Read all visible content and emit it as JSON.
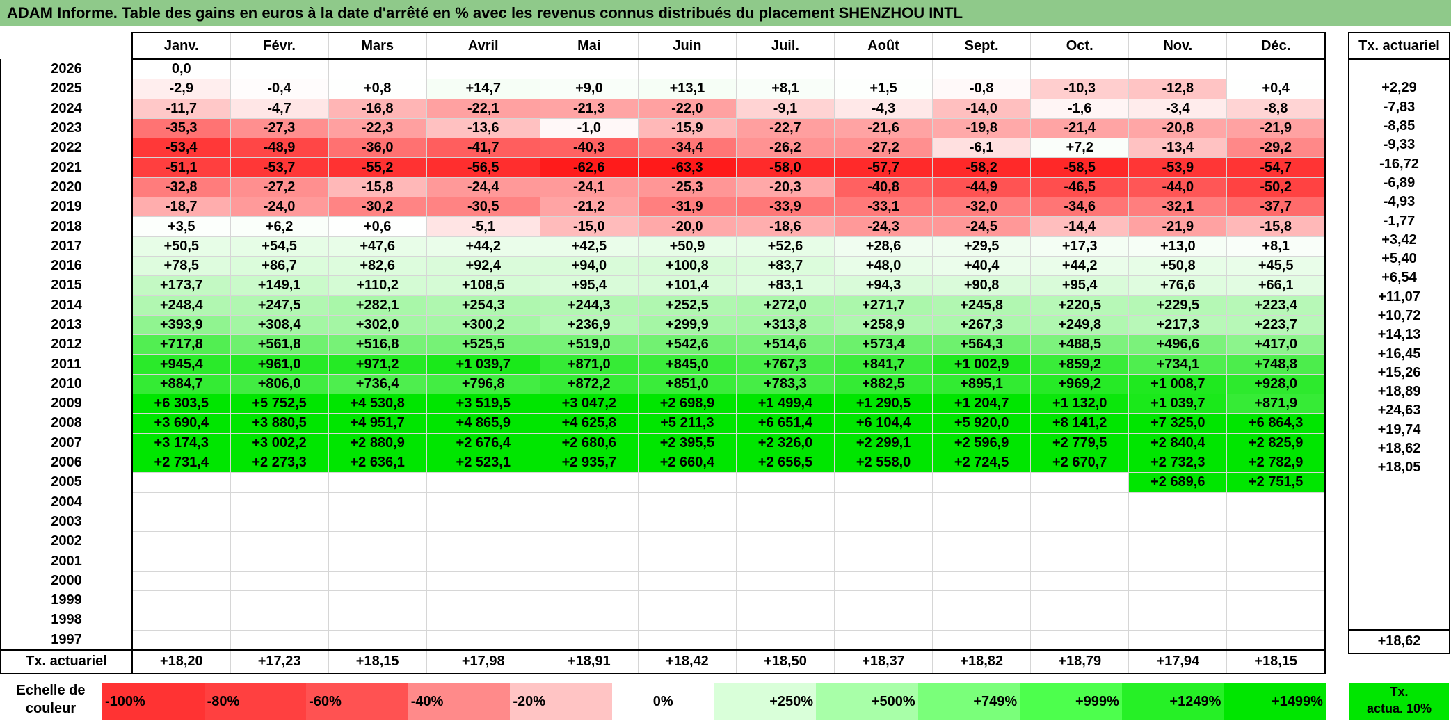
{
  "title": "ADAM Informe. Table des gains en euros à la date d'arrêté en % avec les revenus connus distribués du placement SHENZHOU INTL",
  "months": [
    "Janv.",
    "Févr.",
    "Mars",
    "Avril",
    "Mai",
    "Juin",
    "Juil.",
    "Août",
    "Sept.",
    "Oct.",
    "Nov.",
    "Déc."
  ],
  "side_header": "Tx. actuariel",
  "rows": [
    {
      "year": "2026",
      "values": [
        "0,0",
        "",
        "",
        "",
        "",
        "",
        "",
        "",
        "",
        "",
        "",
        ""
      ],
      "rate": ""
    },
    {
      "year": "2025",
      "values": [
        "-2,9",
        "-0,4",
        "+0,8",
        "+14,7",
        "+9,0",
        "+13,1",
        "+8,1",
        "+1,5",
        "-0,8",
        "-10,3",
        "-12,8",
        "+0,4"
      ],
      "rate": "+2,29"
    },
    {
      "year": "2024",
      "values": [
        "-11,7",
        "-4,7",
        "-16,8",
        "-22,1",
        "-21,3",
        "-22,0",
        "-9,1",
        "-4,3",
        "-14,0",
        "-1,6",
        "-3,4",
        "-8,8"
      ],
      "rate": "-7,83"
    },
    {
      "year": "2023",
      "values": [
        "-35,3",
        "-27,3",
        "-22,3",
        "-13,6",
        "-1,0",
        "-15,9",
        "-22,7",
        "-21,6",
        "-19,8",
        "-21,4",
        "-20,8",
        "-21,9"
      ],
      "rate": "-8,85"
    },
    {
      "year": "2022",
      "values": [
        "-53,4",
        "-48,9",
        "-36,0",
        "-41,7",
        "-40,3",
        "-34,4",
        "-26,2",
        "-27,2",
        "-6,1",
        "+7,2",
        "-13,4",
        "-29,2"
      ],
      "rate": "-9,33"
    },
    {
      "year": "2021",
      "values": [
        "-51,1",
        "-53,7",
        "-55,2",
        "-56,5",
        "-62,6",
        "-63,3",
        "-58,0",
        "-57,7",
        "-58,2",
        "-58,5",
        "-53,9",
        "-54,7"
      ],
      "rate": "-16,72"
    },
    {
      "year": "2020",
      "values": [
        "-32,8",
        "-27,2",
        "-15,8",
        "-24,4",
        "-24,1",
        "-25,3",
        "-20,3",
        "-40,8",
        "-44,9",
        "-46,5",
        "-44,0",
        "-50,2"
      ],
      "rate": "-6,89"
    },
    {
      "year": "2019",
      "values": [
        "-18,7",
        "-24,0",
        "-30,2",
        "-30,5",
        "-21,2",
        "-31,9",
        "-33,9",
        "-33,1",
        "-32,0",
        "-34,6",
        "-32,1",
        "-37,7"
      ],
      "rate": "-4,93"
    },
    {
      "year": "2018",
      "values": [
        "+3,5",
        "+6,2",
        "+0,6",
        "-5,1",
        "-15,0",
        "-20,0",
        "-18,6",
        "-24,3",
        "-24,5",
        "-14,4",
        "-21,9",
        "-15,8"
      ],
      "rate": "-1,77"
    },
    {
      "year": "2017",
      "values": [
        "+50,5",
        "+54,5",
        "+47,6",
        "+44,2",
        "+42,5",
        "+50,9",
        "+52,6",
        "+28,6",
        "+29,5",
        "+17,3",
        "+13,0",
        "+8,1"
      ],
      "rate": "+3,42"
    },
    {
      "year": "2016",
      "values": [
        "+78,5",
        "+86,7",
        "+82,6",
        "+92,4",
        "+94,0",
        "+100,8",
        "+83,7",
        "+48,0",
        "+40,4",
        "+44,2",
        "+50,8",
        "+45,5"
      ],
      "rate": "+5,40"
    },
    {
      "year": "2015",
      "values": [
        "+173,7",
        "+149,1",
        "+110,2",
        "+108,5",
        "+95,4",
        "+101,4",
        "+83,1",
        "+94,3",
        "+90,8",
        "+95,4",
        "+76,6",
        "+66,1"
      ],
      "rate": "+6,54"
    },
    {
      "year": "2014",
      "values": [
        "+248,4",
        "+247,5",
        "+282,1",
        "+254,3",
        "+244,3",
        "+252,5",
        "+272,0",
        "+271,7",
        "+245,8",
        "+220,5",
        "+229,5",
        "+223,4"
      ],
      "rate": "+11,07"
    },
    {
      "year": "2013",
      "values": [
        "+393,9",
        "+308,4",
        "+302,0",
        "+300,2",
        "+236,9",
        "+299,9",
        "+313,8",
        "+258,9",
        "+267,3",
        "+249,8",
        "+217,3",
        "+223,7"
      ],
      "rate": "+10,72"
    },
    {
      "year": "2012",
      "values": [
        "+717,8",
        "+561,8",
        "+516,8",
        "+525,5",
        "+519,0",
        "+542,6",
        "+514,6",
        "+573,4",
        "+564,3",
        "+488,5",
        "+496,6",
        "+417,0"
      ],
      "rate": "+14,13"
    },
    {
      "year": "2011",
      "values": [
        "+945,4",
        "+961,0",
        "+971,2",
        "+1 039,7",
        "+871,0",
        "+845,0",
        "+767,3",
        "+841,7",
        "+1 002,9",
        "+859,2",
        "+734,1",
        "+748,8"
      ],
      "rate": "+16,45"
    },
    {
      "year": "2010",
      "values": [
        "+884,7",
        "+806,0",
        "+736,4",
        "+796,8",
        "+872,2",
        "+851,0",
        "+783,3",
        "+882,5",
        "+895,1",
        "+969,2",
        "+1 008,7",
        "+928,0"
      ],
      "rate": "+15,26"
    },
    {
      "year": "2009",
      "values": [
        "+6 303,5",
        "+5 752,5",
        "+4 530,8",
        "+3 519,5",
        "+3 047,2",
        "+2 698,9",
        "+1 499,4",
        "+1 290,5",
        "+1 204,7",
        "+1 132,0",
        "+1 039,7",
        "+871,9"
      ],
      "rate": "+18,89"
    },
    {
      "year": "2008",
      "values": [
        "+3 690,4",
        "+3 880,5",
        "+4 951,7",
        "+4 865,9",
        "+4 625,8",
        "+5 211,3",
        "+6 651,4",
        "+6 104,4",
        "+5 920,0",
        "+8 141,2",
        "+7 325,0",
        "+6 864,3"
      ],
      "rate": "+24,63"
    },
    {
      "year": "2007",
      "values": [
        "+3 174,3",
        "+3 002,2",
        "+2 880,9",
        "+2 676,4",
        "+2 680,6",
        "+2 395,5",
        "+2 326,0",
        "+2 299,1",
        "+2 596,9",
        "+2 779,5",
        "+2 840,4",
        "+2 825,9"
      ],
      "rate": "+19,74"
    },
    {
      "year": "2006",
      "values": [
        "+2 731,4",
        "+2 273,3",
        "+2 636,1",
        "+2 523,1",
        "+2 935,7",
        "+2 660,4",
        "+2 656,5",
        "+2 558,0",
        "+2 724,5",
        "+2 670,7",
        "+2 732,3",
        "+2 782,9"
      ],
      "rate": "+18,62"
    },
    {
      "year": "2005",
      "values": [
        "",
        "",
        "",
        "",
        "",
        "",
        "",
        "",
        "",
        "",
        "+2 689,6",
        "+2 751,5"
      ],
      "rate": "+18,05"
    },
    {
      "year": "2004",
      "values": [
        "",
        "",
        "",
        "",
        "",
        "",
        "",
        "",
        "",
        "",
        "",
        ""
      ],
      "rate": ""
    },
    {
      "year": "2003",
      "values": [
        "",
        "",
        "",
        "",
        "",
        "",
        "",
        "",
        "",
        "",
        "",
        ""
      ],
      "rate": ""
    },
    {
      "year": "2002",
      "values": [
        "",
        "",
        "",
        "",
        "",
        "",
        "",
        "",
        "",
        "",
        "",
        ""
      ],
      "rate": ""
    },
    {
      "year": "2001",
      "values": [
        "",
        "",
        "",
        "",
        "",
        "",
        "",
        "",
        "",
        "",
        "",
        ""
      ],
      "rate": ""
    },
    {
      "year": "2000",
      "values": [
        "",
        "",
        "",
        "",
        "",
        "",
        "",
        "",
        "",
        "",
        "",
        ""
      ],
      "rate": ""
    },
    {
      "year": "1999",
      "values": [
        "",
        "",
        "",
        "",
        "",
        "",
        "",
        "",
        "",
        "",
        "",
        ""
      ],
      "rate": ""
    },
    {
      "year": "1998",
      "values": [
        "",
        "",
        "",
        "",
        "",
        "",
        "",
        "",
        "",
        "",
        "",
        ""
      ],
      "rate": ""
    },
    {
      "year": "1997",
      "values": [
        "",
        "",
        "",
        "",
        "",
        "",
        "",
        "",
        "",
        "",
        "",
        ""
      ],
      "rate": ""
    }
  ],
  "footer": {
    "label": "Tx. actuariel",
    "values": [
      "+18,20",
      "+17,23",
      "+18,15",
      "+17,98",
      "+18,91",
      "+18,42",
      "+18,50",
      "+18,37",
      "+18,82",
      "+18,79",
      "+17,94",
      "+18,15"
    ],
    "total": "+18,62"
  },
  "legend": {
    "label_line1": "Echelle de",
    "label_line2": "couleur",
    "items": [
      {
        "label": "-100%",
        "color": "#ff3333"
      },
      {
        "label": "-80%",
        "color": "#ff4040"
      },
      {
        "label": "-60%",
        "color": "#ff5252"
      },
      {
        "label": "-40%",
        "color": "#ff8a8a"
      },
      {
        "label": "-20%",
        "color": "#ffc4c4"
      },
      {
        "label": "0%",
        "color": "#ffffff"
      },
      {
        "label": "+250%",
        "color": "#d9ffd9"
      },
      {
        "label": "+500%",
        "color": "#a8ffa8"
      },
      {
        "label": "+749%",
        "color": "#7aff7a"
      },
      {
        "label": "+999%",
        "color": "#4dff4d"
      },
      {
        "label": "+1249%",
        "color": "#26f026"
      },
      {
        "label": "+1499%",
        "color": "#00e600"
      }
    ],
    "side_line1": "Tx.",
    "side_line2": "actua. 10%"
  }
}
